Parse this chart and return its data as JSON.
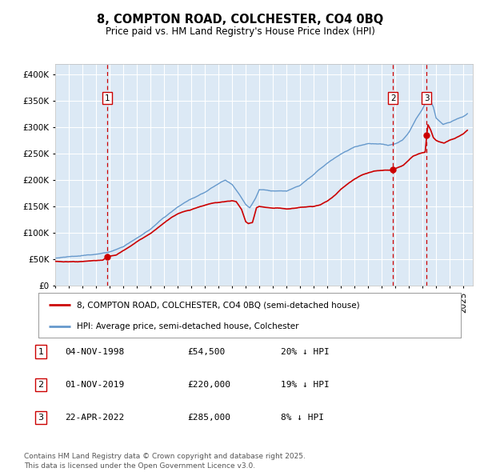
{
  "title": "8, COMPTON ROAD, COLCHESTER, CO4 0BQ",
  "subtitle": "Price paid vs. HM Land Registry's House Price Index (HPI)",
  "legend_red": "8, COMPTON ROAD, COLCHESTER, CO4 0BQ (semi-detached house)",
  "legend_blue": "HPI: Average price, semi-detached house, Colchester",
  "footer": "Contains HM Land Registry data © Crown copyright and database right 2025.\nThis data is licensed under the Open Government Licence v3.0.",
  "sales": [
    {
      "num": 1,
      "date": "04-NOV-1998",
      "price": 54500,
      "pct": "20% ↓ HPI"
    },
    {
      "num": 2,
      "date": "01-NOV-2019",
      "price": 220000,
      "pct": "19% ↓ HPI"
    },
    {
      "num": 3,
      "date": "22-APR-2022",
      "price": 285000,
      "pct": "8% ↓ HPI"
    }
  ],
  "sale_dates_decimal": [
    1998.84,
    2019.83,
    2022.31
  ],
  "sale_prices": [
    54500,
    220000,
    285000
  ],
  "ylim": [
    0,
    420000
  ],
  "yticks": [
    0,
    50000,
    100000,
    150000,
    200000,
    250000,
    300000,
    350000,
    400000
  ],
  "xlim_start": 1995.0,
  "xlim_end": 2025.7,
  "background_color": "#dce9f5",
  "red_color": "#cc0000",
  "blue_color": "#6699cc",
  "grid_color": "#ffffff",
  "dashed_line_color": "#cc0000",
  "blue_anchors": [
    [
      1995.0,
      52000
    ],
    [
      1996.0,
      54000
    ],
    [
      1997.0,
      56000
    ],
    [
      1998.0,
      58000
    ],
    [
      1999.0,
      63000
    ],
    [
      2000.0,
      72000
    ],
    [
      2001.0,
      88000
    ],
    [
      2002.0,
      105000
    ],
    [
      2003.0,
      128000
    ],
    [
      2004.0,
      148000
    ],
    [
      2005.0,
      162000
    ],
    [
      2006.0,
      175000
    ],
    [
      2007.0,
      192000
    ],
    [
      2007.5,
      200000
    ],
    [
      2008.0,
      192000
    ],
    [
      2008.5,
      175000
    ],
    [
      2009.0,
      155000
    ],
    [
      2009.3,
      148000
    ],
    [
      2009.7,
      165000
    ],
    [
      2010.0,
      183000
    ],
    [
      2010.5,
      182000
    ],
    [
      2011.0,
      181000
    ],
    [
      2012.0,
      180000
    ],
    [
      2013.0,
      190000
    ],
    [
      2014.0,
      210000
    ],
    [
      2015.0,
      232000
    ],
    [
      2016.0,
      250000
    ],
    [
      2017.0,
      263000
    ],
    [
      2018.0,
      268000
    ],
    [
      2019.0,
      267000
    ],
    [
      2019.5,
      265000
    ],
    [
      2020.0,
      268000
    ],
    [
      2020.5,
      275000
    ],
    [
      2021.0,
      290000
    ],
    [
      2021.5,
      315000
    ],
    [
      2022.0,
      335000
    ],
    [
      2022.3,
      352000
    ],
    [
      2022.5,
      355000
    ],
    [
      2022.8,
      340000
    ],
    [
      2023.0,
      320000
    ],
    [
      2023.5,
      308000
    ],
    [
      2024.0,
      312000
    ],
    [
      2024.5,
      318000
    ],
    [
      2025.0,
      322000
    ],
    [
      2025.3,
      328000
    ]
  ],
  "red_anchors": [
    [
      1995.0,
      46000
    ],
    [
      1995.5,
      45500
    ],
    [
      1996.0,
      45000
    ],
    [
      1996.5,
      45500
    ],
    [
      1997.0,
      46000
    ],
    [
      1997.5,
      46500
    ],
    [
      1998.0,
      47000
    ],
    [
      1998.5,
      48000
    ],
    [
      1998.84,
      54500
    ],
    [
      1999.0,
      55500
    ],
    [
      1999.5,
      58000
    ],
    [
      2000.0,
      65000
    ],
    [
      2000.5,
      73000
    ],
    [
      2001.0,
      82000
    ],
    [
      2001.5,
      90000
    ],
    [
      2002.0,
      98000
    ],
    [
      2002.5,
      108000
    ],
    [
      2003.0,
      118000
    ],
    [
      2003.5,
      128000
    ],
    [
      2004.0,
      135000
    ],
    [
      2004.5,
      140000
    ],
    [
      2005.0,
      143000
    ],
    [
      2005.5,
      148000
    ],
    [
      2006.0,
      152000
    ],
    [
      2006.5,
      156000
    ],
    [
      2007.0,
      158000
    ],
    [
      2007.5,
      160000
    ],
    [
      2008.0,
      162000
    ],
    [
      2008.3,
      160000
    ],
    [
      2008.7,
      145000
    ],
    [
      2009.0,
      122000
    ],
    [
      2009.2,
      118000
    ],
    [
      2009.5,
      120000
    ],
    [
      2009.8,
      148000
    ],
    [
      2010.0,
      150000
    ],
    [
      2010.5,
      148000
    ],
    [
      2011.0,
      147000
    ],
    [
      2011.5,
      147000
    ],
    [
      2012.0,
      146000
    ],
    [
      2012.5,
      147000
    ],
    [
      2013.0,
      148000
    ],
    [
      2013.5,
      149000
    ],
    [
      2014.0,
      150000
    ],
    [
      2014.5,
      153000
    ],
    [
      2015.0,
      160000
    ],
    [
      2015.5,
      170000
    ],
    [
      2016.0,
      183000
    ],
    [
      2016.5,
      193000
    ],
    [
      2017.0,
      202000
    ],
    [
      2017.5,
      210000
    ],
    [
      2018.0,
      215000
    ],
    [
      2018.5,
      218000
    ],
    [
      2019.0,
      218000
    ],
    [
      2019.5,
      219000
    ],
    [
      2019.83,
      220000
    ],
    [
      2020.0,
      222000
    ],
    [
      2020.3,
      225000
    ],
    [
      2020.6,
      228000
    ],
    [
      2021.0,
      238000
    ],
    [
      2021.3,
      245000
    ],
    [
      2021.7,
      250000
    ],
    [
      2022.0,
      252000
    ],
    [
      2022.2,
      253000
    ],
    [
      2022.31,
      285000
    ],
    [
      2022.4,
      305000
    ],
    [
      2022.6,
      295000
    ],
    [
      2022.8,
      280000
    ],
    [
      2023.0,
      275000
    ],
    [
      2023.3,
      272000
    ],
    [
      2023.6,
      270000
    ],
    [
      2024.0,
      275000
    ],
    [
      2024.3,
      278000
    ],
    [
      2024.6,
      282000
    ],
    [
      2025.0,
      288000
    ],
    [
      2025.3,
      295000
    ]
  ]
}
